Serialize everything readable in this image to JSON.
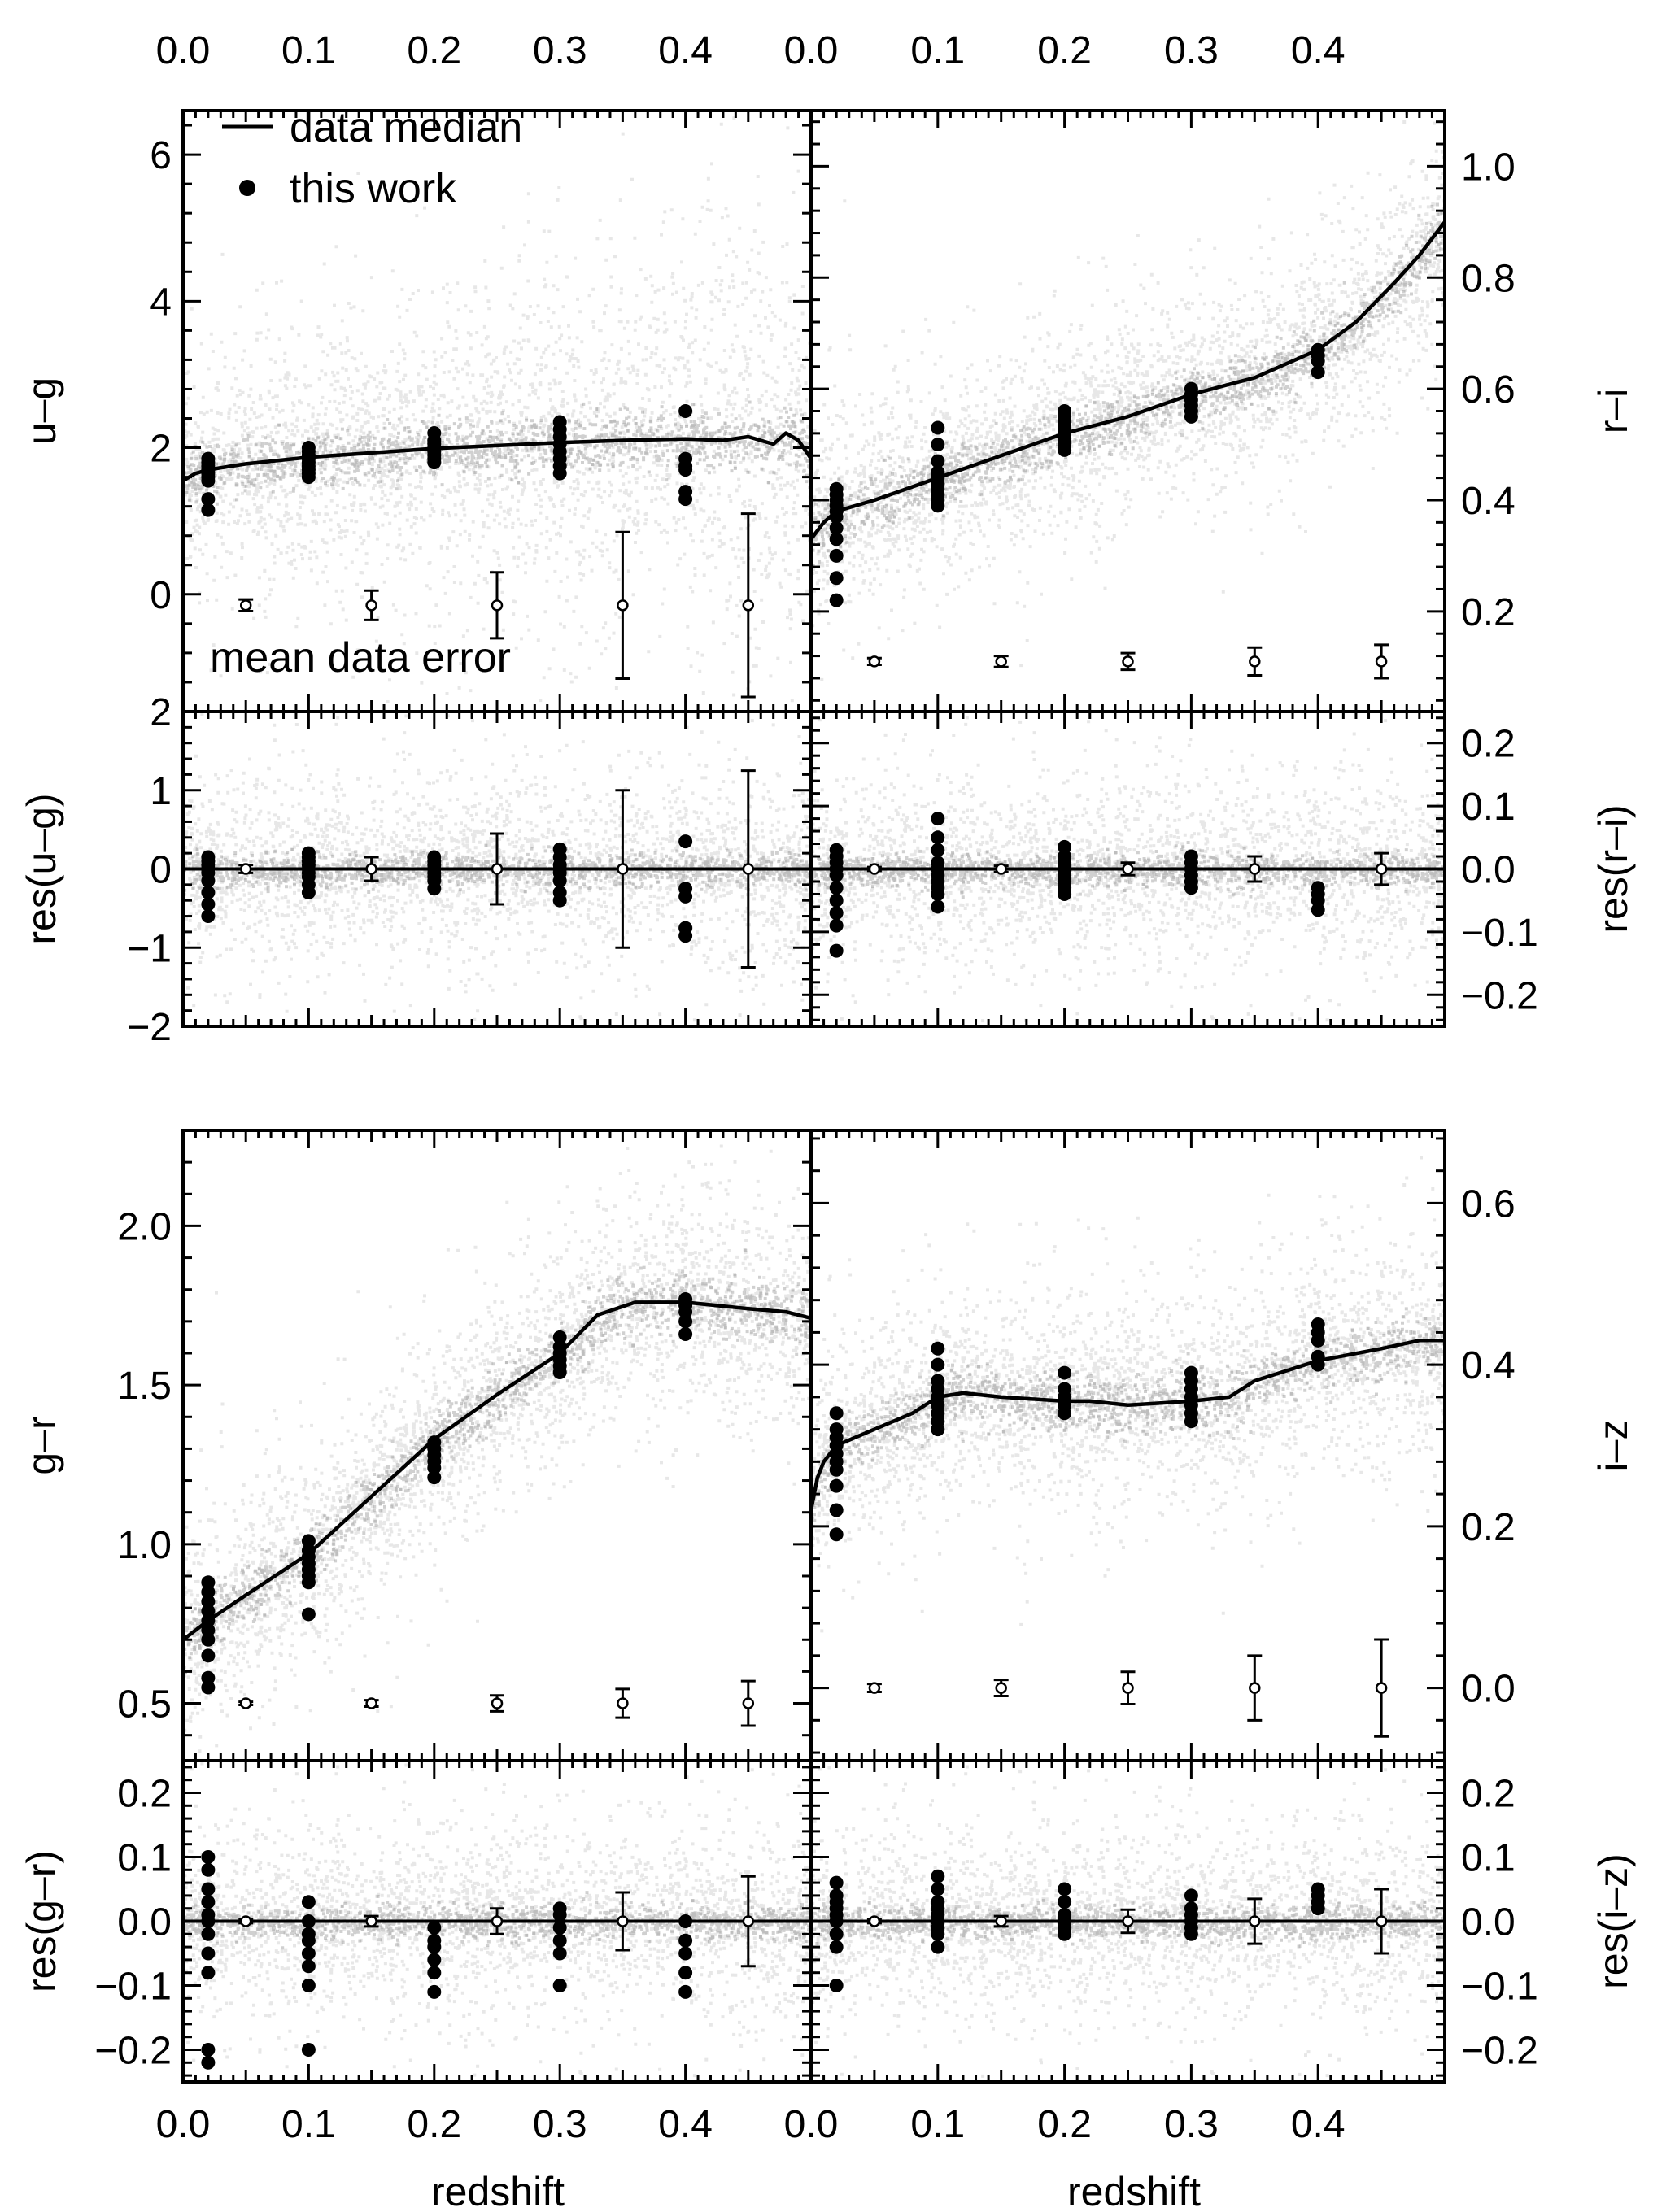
{
  "figure": {
    "xlabel": "redshift",
    "x_ticks": [
      "0.0",
      "0.1",
      "0.2",
      "0.3",
      "0.4"
    ],
    "colors": {
      "cloud": "#a9a9a9",
      "ink": "#000000"
    },
    "legend": {
      "line_label": "data median",
      "dot_label": "this work",
      "error_label": "mean data error",
      "placement": "top-left of first panel"
    }
  },
  "chart_data": [
    {
      "id": "ug",
      "type": "scatter",
      "ylabel": "u–g",
      "xlim": [
        0.0,
        0.5
      ],
      "ylim": [
        -1.6,
        6.6
      ],
      "yticks": [
        0,
        2,
        4,
        6
      ],
      "ytick_labels": [
        "0",
        "2",
        "4",
        "6"
      ],
      "median_line": [
        [
          0.0,
          1.55
        ],
        [
          0.01,
          1.65
        ],
        [
          0.02,
          1.7
        ],
        [
          0.05,
          1.78
        ],
        [
          0.1,
          1.87
        ],
        [
          0.15,
          1.93
        ],
        [
          0.2,
          1.99
        ],
        [
          0.25,
          2.03
        ],
        [
          0.3,
          2.07
        ],
        [
          0.35,
          2.1
        ],
        [
          0.4,
          2.12
        ],
        [
          0.43,
          2.1
        ],
        [
          0.45,
          2.15
        ],
        [
          0.47,
          2.05
        ],
        [
          0.48,
          2.2
        ],
        [
          0.49,
          2.1
        ],
        [
          0.5,
          1.85
        ]
      ],
      "points": [
        {
          "x": 0.02,
          "y": [
            1.85,
            1.8,
            1.75,
            1.7,
            1.65,
            1.6,
            1.55,
            1.3,
            1.15
          ]
        },
        {
          "x": 0.1,
          "y": [
            2.0,
            1.95,
            1.9,
            1.85,
            1.8,
            1.75,
            1.7,
            1.65,
            1.6
          ]
        },
        {
          "x": 0.2,
          "y": [
            2.2,
            2.1,
            2.05,
            2.0,
            1.95,
            1.9,
            1.85,
            1.8
          ]
        },
        {
          "x": 0.3,
          "y": [
            2.35,
            2.25,
            2.15,
            2.05,
            1.95,
            1.85,
            1.75,
            1.65
          ]
        },
        {
          "x": 0.4,
          "y": [
            2.5,
            1.85,
            1.75,
            1.7,
            1.4,
            1.3
          ]
        }
      ],
      "errors": [
        {
          "x": 0.05,
          "y": -0.15,
          "err": 0.08
        },
        {
          "x": 0.15,
          "y": -0.15,
          "err": 0.2
        },
        {
          "x": 0.25,
          "y": -0.15,
          "err": 0.45
        },
        {
          "x": 0.35,
          "y": -0.15,
          "err": 1.0
        },
        {
          "x": 0.45,
          "y": -0.15,
          "err": 1.25
        }
      ]
    },
    {
      "id": "ri",
      "type": "scatter",
      "ylabel": "r–i",
      "xlim": [
        0.0,
        0.5
      ],
      "ylim": [
        0.02,
        1.1
      ],
      "yticks": [
        0.2,
        0.4,
        0.6,
        0.8,
        1.0
      ],
      "ytick_labels": [
        "0.2",
        "0.4",
        "0.6",
        "0.8",
        "1.0"
      ],
      "median_line": [
        [
          0.0,
          0.33
        ],
        [
          0.01,
          0.36
        ],
        [
          0.02,
          0.38
        ],
        [
          0.05,
          0.4
        ],
        [
          0.1,
          0.44
        ],
        [
          0.15,
          0.48
        ],
        [
          0.2,
          0.52
        ],
        [
          0.25,
          0.55
        ],
        [
          0.3,
          0.59
        ],
        [
          0.35,
          0.62
        ],
        [
          0.4,
          0.67
        ],
        [
          0.43,
          0.72
        ],
        [
          0.46,
          0.79
        ],
        [
          0.48,
          0.84
        ],
        [
          0.5,
          0.9
        ]
      ],
      "points": [
        {
          "x": 0.02,
          "y": [
            0.42,
            0.41,
            0.4,
            0.39,
            0.38,
            0.37,
            0.35,
            0.33,
            0.3,
            0.26,
            0.22
          ]
        },
        {
          "x": 0.1,
          "y": [
            0.53,
            0.5,
            0.47,
            0.45,
            0.44,
            0.43,
            0.42,
            0.41,
            0.4,
            0.39
          ]
        },
        {
          "x": 0.2,
          "y": [
            0.56,
            0.55,
            0.54,
            0.53,
            0.52,
            0.51,
            0.5,
            0.49
          ]
        },
        {
          "x": 0.3,
          "y": [
            0.6,
            0.59,
            0.58,
            0.57,
            0.56,
            0.55
          ]
        },
        {
          "x": 0.4,
          "y": [
            0.67,
            0.66,
            0.65,
            0.63
          ]
        }
      ],
      "errors": [
        {
          "x": 0.05,
          "y": 0.11,
          "err": 0.006
        },
        {
          "x": 0.15,
          "y": 0.11,
          "err": 0.01
        },
        {
          "x": 0.25,
          "y": 0.11,
          "err": 0.015
        },
        {
          "x": 0.35,
          "y": 0.11,
          "err": 0.025
        },
        {
          "x": 0.45,
          "y": 0.11,
          "err": 0.03
        }
      ]
    },
    {
      "id": "res_ug",
      "type": "scatter",
      "ylabel": "res(u–g)",
      "xlim": [
        0.0,
        0.5
      ],
      "ylim": [
        -2.0,
        2.0
      ],
      "yticks": [
        -2,
        -1,
        0,
        1,
        2
      ],
      "ytick_labels": [
        "−2",
        "−1",
        "0",
        "1",
        "2"
      ],
      "zero_line": 0,
      "points": [
        {
          "x": 0.02,
          "y": [
            0.15,
            0.1,
            0.05,
            0.0,
            -0.05,
            -0.15,
            -0.3,
            -0.45,
            -0.6
          ]
        },
        {
          "x": 0.1,
          "y": [
            0.2,
            0.15,
            0.1,
            0.05,
            0.0,
            -0.05,
            -0.1,
            -0.2,
            -0.3
          ]
        },
        {
          "x": 0.2,
          "y": [
            0.15,
            0.1,
            0.05,
            0.0,
            -0.05,
            -0.1,
            -0.15,
            -0.25
          ]
        },
        {
          "x": 0.3,
          "y": [
            0.25,
            0.15,
            0.05,
            0.0,
            -0.05,
            -0.15,
            -0.3,
            -0.4
          ]
        },
        {
          "x": 0.4,
          "y": [
            0.35,
            -0.25,
            -0.35,
            -0.75,
            -0.85
          ]
        }
      ],
      "errors": [
        {
          "x": 0.05,
          "y": 0,
          "err": 0.05
        },
        {
          "x": 0.15,
          "y": 0,
          "err": 0.15
        },
        {
          "x": 0.25,
          "y": 0,
          "err": 0.45
        },
        {
          "x": 0.35,
          "y": 0,
          "err": 1.0
        },
        {
          "x": 0.45,
          "y": 0,
          "err": 1.25
        }
      ]
    },
    {
      "id": "res_ri",
      "type": "scatter",
      "ylabel": "res(r–i)",
      "xlim": [
        0.0,
        0.5
      ],
      "ylim": [
        -0.25,
        0.25
      ],
      "yticks": [
        -0.2,
        -0.1,
        0.0,
        0.1,
        0.2
      ],
      "ytick_labels": [
        "−0.2",
        "−0.1",
        "0.0",
        "0.1",
        "0.2"
      ],
      "zero_line": 0,
      "points": [
        {
          "x": 0.02,
          "y": [
            0.03,
            0.02,
            0.01,
            0.0,
            -0.01,
            -0.03,
            -0.05,
            -0.07,
            -0.09,
            -0.13
          ]
        },
        {
          "x": 0.1,
          "y": [
            0.08,
            0.05,
            0.03,
            0.01,
            0.0,
            -0.01,
            -0.02,
            -0.03,
            -0.04,
            -0.06
          ]
        },
        {
          "x": 0.2,
          "y": [
            0.035,
            0.02,
            0.01,
            0.0,
            -0.01,
            -0.02,
            -0.03,
            -0.04
          ]
        },
        {
          "x": 0.3,
          "y": [
            0.02,
            0.01,
            0.0,
            -0.01,
            -0.02,
            -0.03
          ]
        },
        {
          "x": 0.4,
          "y": [
            -0.03,
            -0.04,
            -0.05,
            -0.065
          ]
        }
      ],
      "errors": [
        {
          "x": 0.05,
          "y": 0,
          "err": 0.003
        },
        {
          "x": 0.15,
          "y": 0,
          "err": 0.005
        },
        {
          "x": 0.25,
          "y": 0,
          "err": 0.01
        },
        {
          "x": 0.35,
          "y": 0,
          "err": 0.02
        },
        {
          "x": 0.45,
          "y": 0,
          "err": 0.025
        }
      ]
    },
    {
      "id": "gr",
      "type": "scatter",
      "ylabel": "g–r",
      "xlim": [
        0.0,
        0.5
      ],
      "ylim": [
        0.32,
        2.3
      ],
      "yticks": [
        0.5,
        1.0,
        1.5,
        2.0
      ],
      "ytick_labels": [
        "0.5",
        "1.0",
        "1.5",
        "2.0"
      ],
      "median_line": [
        [
          0.0,
          0.7
        ],
        [
          0.02,
          0.76
        ],
        [
          0.05,
          0.84
        ],
        [
          0.1,
          0.97
        ],
        [
          0.15,
          1.15
        ],
        [
          0.2,
          1.33
        ],
        [
          0.25,
          1.47
        ],
        [
          0.3,
          1.6
        ],
        [
          0.33,
          1.72
        ],
        [
          0.36,
          1.76
        ],
        [
          0.4,
          1.76
        ],
        [
          0.45,
          1.74
        ],
        [
          0.48,
          1.73
        ],
        [
          0.5,
          1.71
        ]
      ],
      "points": [
        {
          "x": 0.02,
          "y": [
            0.88,
            0.85,
            0.82,
            0.79,
            0.76,
            0.73,
            0.7,
            0.65,
            0.58,
            0.55
          ]
        },
        {
          "x": 0.1,
          "y": [
            1.01,
            0.98,
            0.96,
            0.94,
            0.92,
            0.9,
            0.88,
            0.78
          ]
        },
        {
          "x": 0.2,
          "y": [
            1.32,
            1.3,
            1.28,
            1.26,
            1.24,
            1.21
          ]
        },
        {
          "x": 0.3,
          "y": [
            1.65,
            1.62,
            1.6,
            1.58,
            1.56,
            1.54
          ]
        },
        {
          "x": 0.4,
          "y": [
            1.77,
            1.75,
            1.73,
            1.7,
            1.66
          ]
        }
      ],
      "errors": [
        {
          "x": 0.05,
          "y": 0.5,
          "err": 0.005
        },
        {
          "x": 0.15,
          "y": 0.5,
          "err": 0.01
        },
        {
          "x": 0.25,
          "y": 0.5,
          "err": 0.025
        },
        {
          "x": 0.35,
          "y": 0.5,
          "err": 0.045
        },
        {
          "x": 0.45,
          "y": 0.5,
          "err": 0.07
        }
      ]
    },
    {
      "id": "iz",
      "type": "scatter",
      "ylabel": "i–z",
      "xlim": [
        0.0,
        0.5
      ],
      "ylim": [
        -0.09,
        0.69
      ],
      "yticks": [
        0.0,
        0.2,
        0.4,
        0.6
      ],
      "ytick_labels": [
        "0.0",
        "0.2",
        "0.4",
        "0.6"
      ],
      "median_line": [
        [
          0.0,
          0.22
        ],
        [
          0.005,
          0.26
        ],
        [
          0.01,
          0.28
        ],
        [
          0.02,
          0.3
        ],
        [
          0.05,
          0.32
        ],
        [
          0.08,
          0.34
        ],
        [
          0.1,
          0.36
        ],
        [
          0.12,
          0.365
        ],
        [
          0.15,
          0.36
        ],
        [
          0.2,
          0.355
        ],
        [
          0.22,
          0.355
        ],
        [
          0.25,
          0.35
        ],
        [
          0.3,
          0.355
        ],
        [
          0.33,
          0.36
        ],
        [
          0.35,
          0.38
        ],
        [
          0.4,
          0.405
        ],
        [
          0.45,
          0.42
        ],
        [
          0.48,
          0.43
        ],
        [
          0.5,
          0.43
        ]
      ],
      "points": [
        {
          "x": 0.02,
          "y": [
            0.34,
            0.32,
            0.31,
            0.3,
            0.29,
            0.28,
            0.27,
            0.25,
            0.22,
            0.19
          ]
        },
        {
          "x": 0.1,
          "y": [
            0.42,
            0.4,
            0.38,
            0.37,
            0.36,
            0.35,
            0.34,
            0.33,
            0.32
          ]
        },
        {
          "x": 0.2,
          "y": [
            0.39,
            0.37,
            0.36,
            0.35,
            0.34
          ]
        },
        {
          "x": 0.3,
          "y": [
            0.39,
            0.38,
            0.37,
            0.36,
            0.35,
            0.34,
            0.33
          ]
        },
        {
          "x": 0.4,
          "y": [
            0.45,
            0.44,
            0.43,
            0.41,
            0.4
          ]
        }
      ],
      "errors": [
        {
          "x": 0.05,
          "y": 0.0,
          "err": 0.005
        },
        {
          "x": 0.15,
          "y": 0.0,
          "err": 0.01
        },
        {
          "x": 0.25,
          "y": 0.0,
          "err": 0.02
        },
        {
          "x": 0.35,
          "y": 0.0,
          "err": 0.04
        },
        {
          "x": 0.45,
          "y": 0.0,
          "err": 0.06
        }
      ]
    },
    {
      "id": "res_gr",
      "type": "scatter",
      "ylabel": "res(g–r)",
      "xlim": [
        0.0,
        0.5
      ],
      "ylim": [
        -0.25,
        0.25
      ],
      "yticks": [
        -0.2,
        -0.1,
        0.0,
        0.1,
        0.2
      ],
      "ytick_labels": [
        "−0.2",
        "−0.1",
        "0.0",
        "0.1",
        "0.2"
      ],
      "zero_line": 0,
      "points": [
        {
          "x": 0.02,
          "y": [
            0.1,
            0.08,
            0.05,
            0.03,
            0.01,
            0.0,
            -0.02,
            -0.05,
            -0.08,
            -0.2,
            -0.22
          ]
        },
        {
          "x": 0.1,
          "y": [
            0.03,
            0.0,
            -0.02,
            -0.03,
            -0.05,
            -0.07,
            -0.1,
            -0.2
          ]
        },
        {
          "x": 0.2,
          "y": [
            -0.01,
            -0.03,
            -0.04,
            -0.06,
            -0.08,
            -0.11
          ]
        },
        {
          "x": 0.3,
          "y": [
            0.02,
            0.01,
            -0.01,
            -0.03,
            -0.05,
            -0.1
          ]
        },
        {
          "x": 0.4,
          "y": [
            0.0,
            -0.03,
            -0.05,
            -0.08,
            -0.11
          ]
        }
      ],
      "errors": [
        {
          "x": 0.05,
          "y": 0,
          "err": 0.003
        },
        {
          "x": 0.15,
          "y": 0,
          "err": 0.008
        },
        {
          "x": 0.25,
          "y": 0,
          "err": 0.02
        },
        {
          "x": 0.35,
          "y": 0,
          "err": 0.045
        },
        {
          "x": 0.45,
          "y": 0,
          "err": 0.07
        }
      ]
    },
    {
      "id": "res_iz",
      "type": "scatter",
      "ylabel": "res(i–z)",
      "xlim": [
        0.0,
        0.5
      ],
      "ylim": [
        -0.25,
        0.25
      ],
      "yticks": [
        -0.2,
        -0.1,
        0.0,
        0.1,
        0.2
      ],
      "ytick_labels": [
        "−0.2",
        "−0.1",
        "0.0",
        "0.1",
        "0.2"
      ],
      "zero_line": 0,
      "points": [
        {
          "x": 0.02,
          "y": [
            0.06,
            0.04,
            0.03,
            0.02,
            0.01,
            0.0,
            -0.02,
            -0.04,
            -0.1
          ]
        },
        {
          "x": 0.1,
          "y": [
            0.07,
            0.05,
            0.03,
            0.02,
            0.01,
            0.0,
            -0.01,
            -0.02,
            -0.04
          ]
        },
        {
          "x": 0.2,
          "y": [
            0.05,
            0.03,
            0.01,
            0.0,
            -0.01,
            -0.02
          ]
        },
        {
          "x": 0.3,
          "y": [
            0.04,
            0.02,
            0.01,
            0.0,
            -0.01,
            -0.02
          ]
        },
        {
          "x": 0.4,
          "y": [
            0.05,
            0.04,
            0.03,
            0.02
          ]
        }
      ],
      "errors": [
        {
          "x": 0.05,
          "y": 0,
          "err": 0.003
        },
        {
          "x": 0.15,
          "y": 0,
          "err": 0.008
        },
        {
          "x": 0.25,
          "y": 0,
          "err": 0.018
        },
        {
          "x": 0.35,
          "y": 0,
          "err": 0.035
        },
        {
          "x": 0.45,
          "y": 0,
          "err": 0.05
        }
      ]
    }
  ]
}
